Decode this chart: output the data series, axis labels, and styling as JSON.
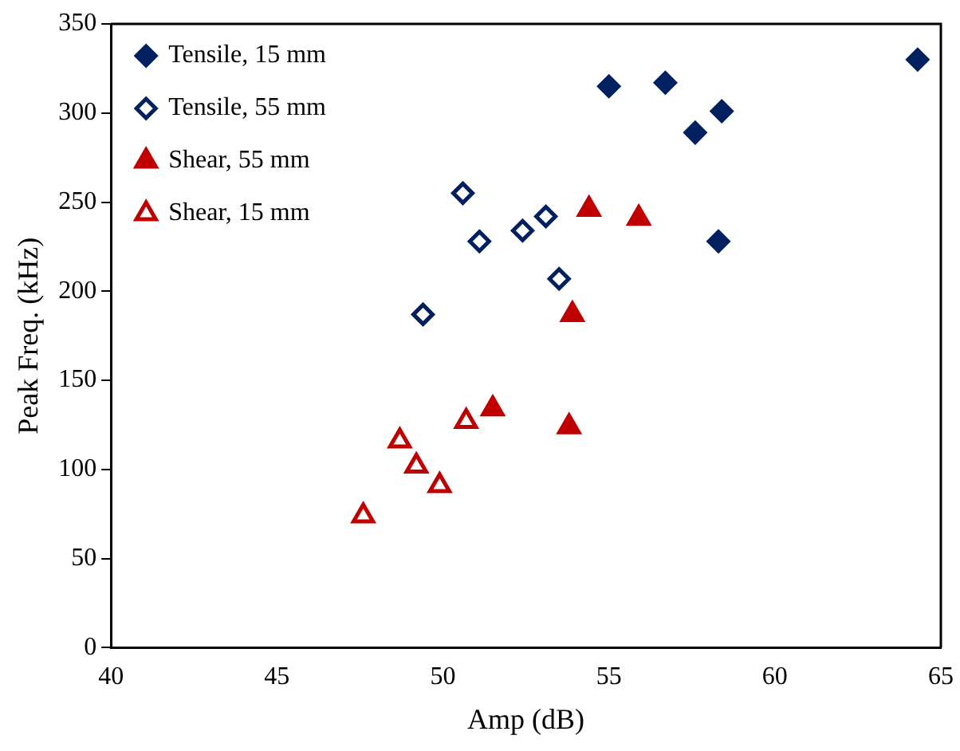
{
  "chart_data": {
    "type": "scatter",
    "xlabel": "Amp (dB)",
    "ylabel": "Peak Freq. (kHz)",
    "xlim": [
      40,
      65
    ],
    "xticks": [
      40,
      45,
      50,
      55,
      60,
      65
    ],
    "ylim": [
      0,
      350
    ],
    "yticks": [
      0,
      50,
      100,
      150,
      200,
      250,
      300,
      350
    ],
    "grid": false,
    "legend": "top left",
    "series": [
      {
        "name": "Tensile, 15 mm",
        "color": "#002060",
        "marker": "diamond",
        "x": [
          55.0,
          56.7,
          57.6,
          58.4,
          58.3,
          64.3
        ],
        "values": [
          315,
          317,
          289,
          301,
          228,
          330
        ]
      },
      {
        "name": "Tensile, 55 mm",
        "color": "#002060",
        "marker": "diamond",
        "x": [
          50.6,
          51.1,
          52.4,
          53.1,
          53.5,
          49.4
        ],
        "values": [
          255,
          228,
          234,
          242,
          207,
          187
        ]
      },
      {
        "name": "Shear, 55 mm",
        "color": "#c00000",
        "marker": "triangle",
        "x": [
          54.4,
          55.9,
          53.9,
          53.8,
          51.5
        ],
        "values": [
          246,
          241,
          187,
          124,
          134
        ]
      },
      {
        "name": "Shear, 15 mm",
        "color": "#c00000",
        "marker": "triangle",
        "x": [
          47.6,
          48.7,
          49.2,
          49.9,
          50.7
        ],
        "values": [
          74,
          116,
          102,
          91,
          127
        ]
      }
    ]
  }
}
